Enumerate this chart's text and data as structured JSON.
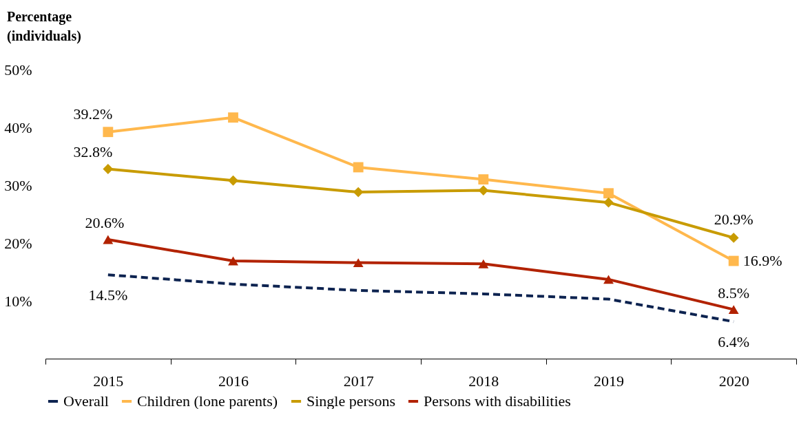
{
  "chart_data": {
    "type": "line",
    "ylabel": "Percentage (individuals)",
    "categories": [
      "2015",
      "2016",
      "2017",
      "2018",
      "2019",
      "2020"
    ],
    "ylim": [
      0,
      50
    ],
    "yticks": [
      {
        "value": 10,
        "label": "10%"
      },
      {
        "value": 20,
        "label": "20%"
      },
      {
        "value": 30,
        "label": "30%"
      },
      {
        "value": 40,
        "label": "40%"
      },
      {
        "value": 50,
        "label": "50%"
      }
    ],
    "grid": false,
    "legend": "bottom",
    "series": [
      {
        "name": "Overall",
        "color": "#0d2350",
        "marker": "none",
        "line_style": "dashed",
        "values": [
          14.5,
          12.9,
          11.8,
          11.2,
          10.3,
          6.4
        ],
        "value_labels": [
          "14.5%",
          null,
          null,
          null,
          null,
          "6.4%"
        ]
      },
      {
        "name": "Children (lone parents)",
        "color": "#ffb84d",
        "marker": "square",
        "line_style": "solid",
        "values": [
          39.2,
          41.7,
          33.1,
          31.0,
          28.6,
          16.9
        ],
        "value_labels": [
          "39.2%",
          null,
          null,
          null,
          null,
          "16.9%"
        ]
      },
      {
        "name": "Single persons",
        "color": "#c89b00",
        "marker": "diamond",
        "line_style": "solid",
        "values": [
          32.8,
          30.8,
          28.8,
          29.1,
          27.0,
          20.9
        ],
        "value_labels": [
          "32.8%",
          null,
          null,
          null,
          null,
          "20.9%"
        ]
      },
      {
        "name": "Persons with disabilities",
        "color": "#b22200",
        "marker": "triangle",
        "line_style": "solid",
        "values": [
          20.6,
          16.9,
          16.6,
          16.4,
          13.7,
          8.5
        ],
        "value_labels": [
          "20.6%",
          null,
          null,
          null,
          null,
          "8.5%"
        ]
      }
    ]
  }
}
